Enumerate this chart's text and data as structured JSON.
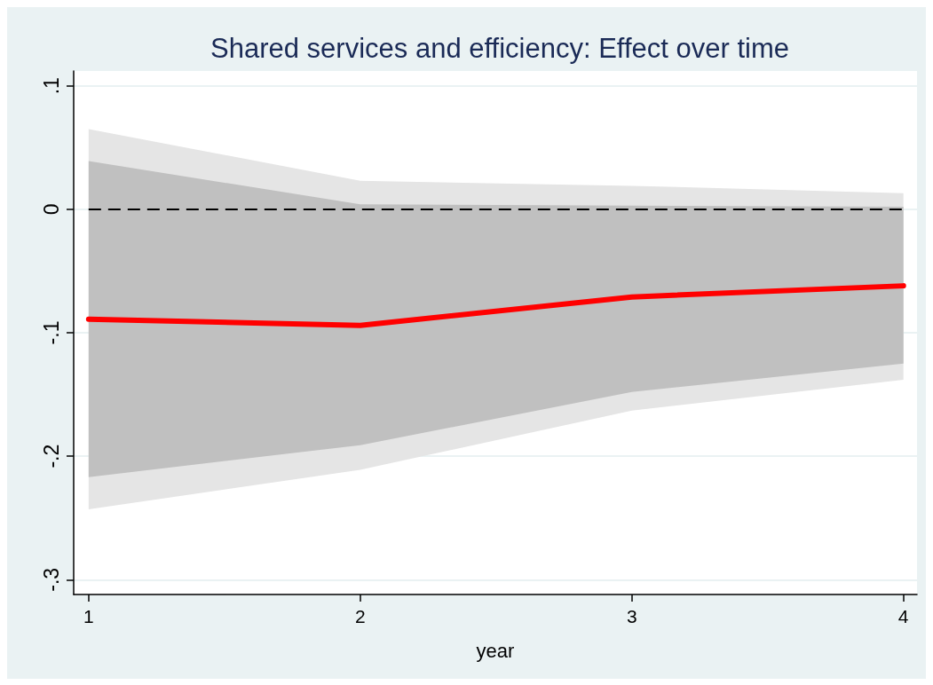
{
  "chart_data": {
    "type": "line",
    "title": "Shared services and efficiency: Effect over time",
    "xlabel": "year",
    "x": [
      1,
      2,
      3,
      4
    ],
    "series": [
      {
        "color": "#e5e5e5",
        "values": [
          null,
          null,
          null,
          null
        ],
        "lower": [
          -0.243,
          -0.211,
          -0.163,
          -0.138
        ],
        "upper": [
          0.065,
          0.023,
          0.019,
          0.013
        ]
      },
      {
        "color": "#c0c0c0",
        "values": [
          null,
          null,
          null,
          null
        ],
        "lower": [
          -0.217,
          -0.191,
          -0.148,
          -0.125
        ],
        "upper": [
          0.039,
          0.004,
          0.003,
          0.002
        ]
      },
      {
        "color": "#ff0000",
        "values": [
          -0.089,
          -0.094,
          -0.071,
          -0.062
        ]
      }
    ],
    "xlim": [
      0.945,
      4.05
    ],
    "xticks": [
      1,
      2,
      3,
      4
    ],
    "ylim": [
      -0.312,
      0.112
    ],
    "yticks": [
      {
        "value": 0.1,
        "label": ".1"
      },
      0,
      {
        "value": -0.1,
        "label": "-.1"
      },
      {
        "value": -0.2,
        "label": "-.2"
      },
      {
        "value": -0.3,
        "label": "-.3"
      }
    ],
    "ref_lines": [
      {
        "axis": "y",
        "value": 0,
        "color": "#000000",
        "line_style": "dashed"
      }
    ],
    "grid": "y",
    "marker": "none",
    "line_style": "solid"
  }
}
